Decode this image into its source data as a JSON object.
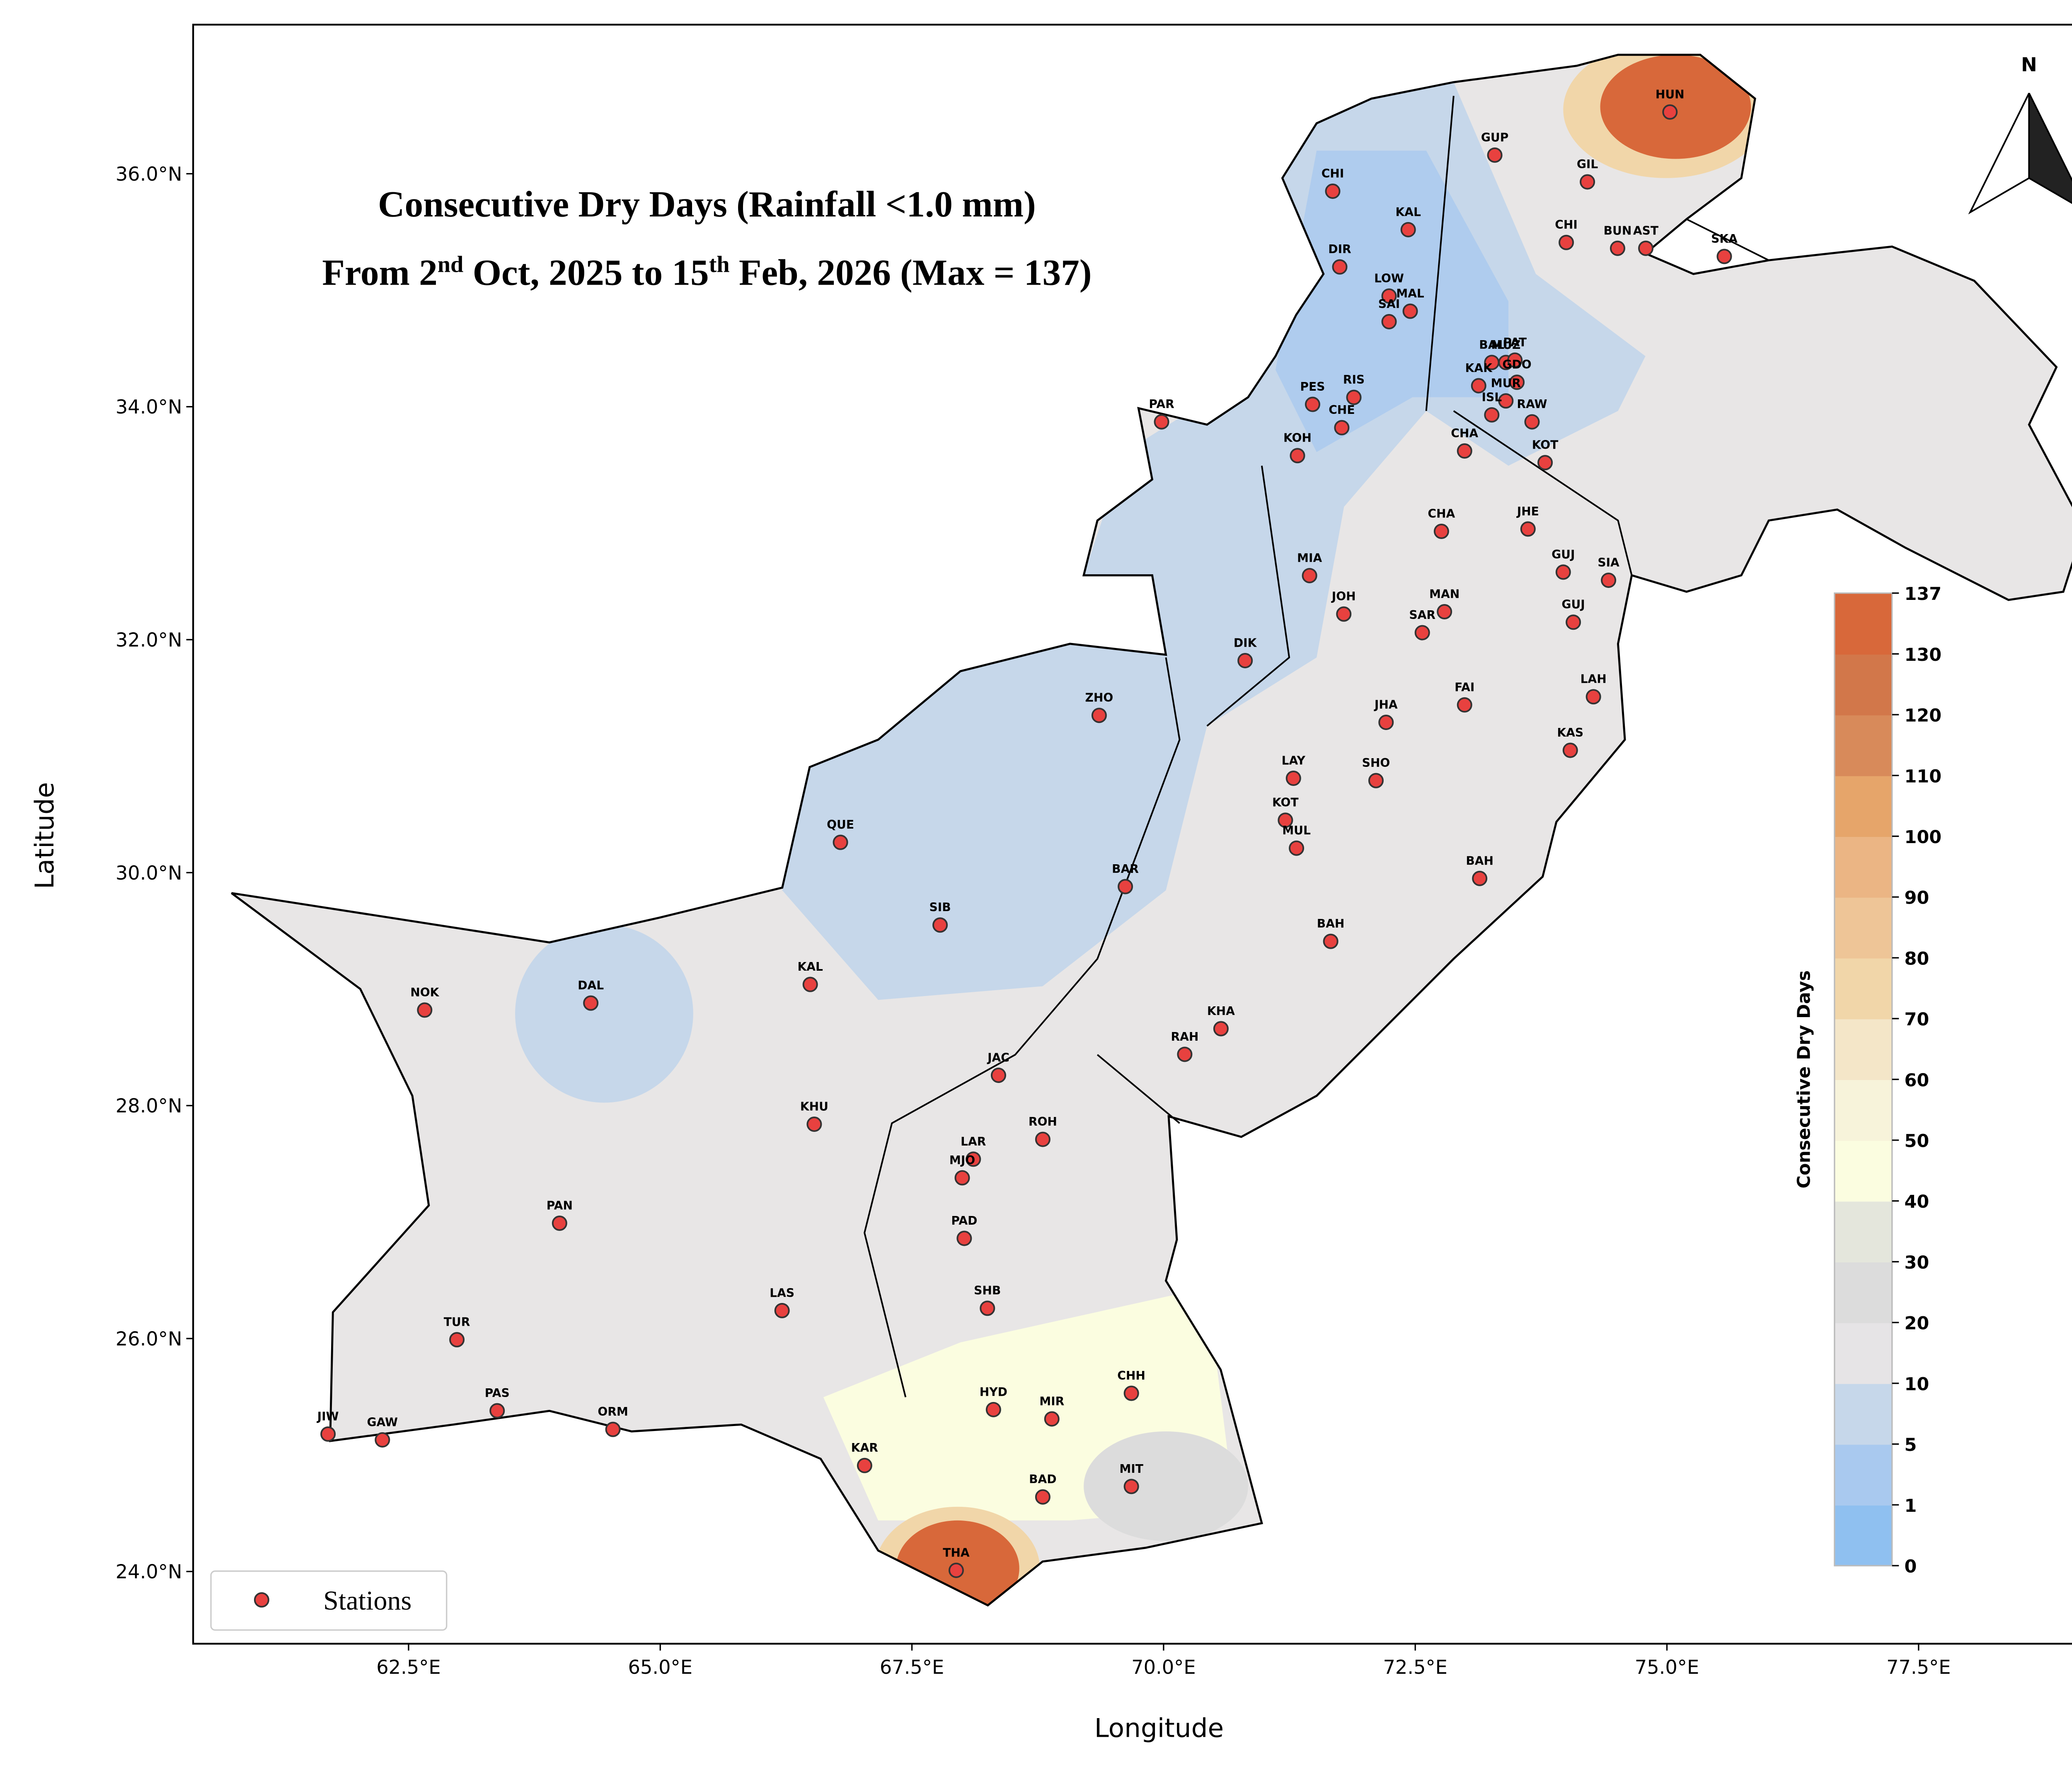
{
  "chart_data": {
    "type": "station-map",
    "title": "Consecutive Dry Days (Rainfall <1.0 mm)",
    "subtitle_parts": [
      {
        "text": "From 2"
      },
      {
        "text": "nd",
        "sup": true
      },
      {
        "text": " Oct, 2025 to 15"
      },
      {
        "text": "th",
        "sup": true
      },
      {
        "text": " Feb, 2026 (Max = 137)"
      }
    ],
    "x_label": "Longitude",
    "y_label": "Latitude",
    "xlim": [
      60.36,
      79.55
    ],
    "ylim": [
      23.38,
      37.28
    ],
    "xticks": [
      {
        "value": 62.5,
        "label": "62.5°E"
      },
      {
        "value": 65,
        "label": "65.0°E"
      },
      {
        "value": 67.5,
        "label": "67.5°E"
      },
      {
        "value": 70,
        "label": "70.0°E"
      },
      {
        "value": 72.5,
        "label": "72.5°E"
      },
      {
        "value": 75,
        "label": "75.0°E"
      },
      {
        "value": 77.5,
        "label": "77.5°E"
      }
    ],
    "yticks": [
      {
        "value": 24,
        "label": "24.0°N"
      },
      {
        "value": 26,
        "label": "26.0°N"
      },
      {
        "value": 28,
        "label": "28.0°N"
      },
      {
        "value": 30,
        "label": "30.0°N"
      },
      {
        "value": 32,
        "label": "32.0°N"
      },
      {
        "value": 34,
        "label": "34.0°N"
      },
      {
        "value": 36,
        "label": "36.0°N"
      }
    ],
    "north_label": "N",
    "legend": {
      "label": "Stations",
      "corner": "lower left"
    },
    "station_color": "#e8413f",
    "colorbar": {
      "label": "Consecutive Dry Days",
      "levels": [
        0,
        1,
        5,
        10,
        20,
        30,
        40,
        50,
        60,
        70,
        80,
        90,
        100,
        110,
        120,
        130,
        137
      ],
      "colors": [
        "#8fc0f0",
        "#a9c9ef",
        "#c6d7ea",
        "#e6e4e6",
        "#dcdcdc",
        "#e4e6dc",
        "#fbfde0",
        "#f7f3da",
        "#f4e6c8",
        "#f1d6a9",
        "#eec597",
        "#ebb584",
        "#e6a56a",
        "#d88a5a",
        "#d2774a",
        "#d8683a"
      ]
    },
    "stations": [
      {
        "name": "GUP",
        "lon": 73.29,
        "lat": 36.16
      },
      {
        "name": "HUN",
        "lon": 75.03,
        "lat": 36.53
      },
      {
        "name": "GIL",
        "lon": 74.21,
        "lat": 35.93
      },
      {
        "name": "CHI",
        "lon": 71.68,
        "lat": 35.85
      },
      {
        "name": "KAL",
        "lon": 72.43,
        "lat": 35.52
      },
      {
        "name": "CHI",
        "lon": 74.0,
        "lat": 35.41
      },
      {
        "name": "BUN",
        "lon": 74.51,
        "lat": 35.36
      },
      {
        "name": "AST",
        "lon": 74.79,
        "lat": 35.36
      },
      {
        "name": "SKA",
        "lon": 75.57,
        "lat": 35.29
      },
      {
        "name": "DIR",
        "lon": 71.75,
        "lat": 35.2
      },
      {
        "name": "LOW",
        "lon": 72.24,
        "lat": 34.95
      },
      {
        "name": "SAI",
        "lon": 72.24,
        "lat": 34.73
      },
      {
        "name": "MAL",
        "lon": 72.45,
        "lat": 34.82
      },
      {
        "name": "BAL",
        "lon": 73.26,
        "lat": 34.38
      },
      {
        "name": "MUZ",
        "lon": 73.4,
        "lat": 34.38
      },
      {
        "name": "PAT",
        "lon": 73.49,
        "lat": 34.4
      },
      {
        "name": "KAK",
        "lon": 73.13,
        "lat": 34.18
      },
      {
        "name": "GDO",
        "lon": 73.51,
        "lat": 34.21
      },
      {
        "name": "MUR",
        "lon": 73.4,
        "lat": 34.05
      },
      {
        "name": "RAW",
        "lon": 73.66,
        "lat": 33.87
      },
      {
        "name": "ISL",
        "lon": 73.26,
        "lat": 33.93
      },
      {
        "name": "CHA",
        "lon": 72.99,
        "lat": 33.62
      },
      {
        "name": "KOT",
        "lon": 73.79,
        "lat": 33.52
      },
      {
        "name": "PES",
        "lon": 71.48,
        "lat": 34.02
      },
      {
        "name": "RIS",
        "lon": 71.89,
        "lat": 34.08
      },
      {
        "name": "CHE",
        "lon": 71.77,
        "lat": 33.82
      },
      {
        "name": "KOH",
        "lon": 71.33,
        "lat": 33.58
      },
      {
        "name": "PAR",
        "lon": 69.98,
        "lat": 33.87
      },
      {
        "name": "CHA",
        "lon": 72.76,
        "lat": 32.93
      },
      {
        "name": "JHE",
        "lon": 73.62,
        "lat": 32.95
      },
      {
        "name": "GUJ",
        "lon": 73.97,
        "lat": 32.58
      },
      {
        "name": "SIA",
        "lon": 74.42,
        "lat": 32.51
      },
      {
        "name": "MIA",
        "lon": 71.45,
        "lat": 32.55
      },
      {
        "name": "JOH",
        "lon": 71.79,
        "lat": 32.22
      },
      {
        "name": "MAN",
        "lon": 72.79,
        "lat": 32.24
      },
      {
        "name": "SAR",
        "lon": 72.57,
        "lat": 32.06
      },
      {
        "name": "GUJ",
        "lon": 74.07,
        "lat": 32.15
      },
      {
        "name": "DIK",
        "lon": 70.81,
        "lat": 31.82
      },
      {
        "name": "FAI",
        "lon": 72.99,
        "lat": 31.44
      },
      {
        "name": "LAH",
        "lon": 74.27,
        "lat": 31.51
      },
      {
        "name": "KAS",
        "lon": 74.04,
        "lat": 31.05
      },
      {
        "name": "JHA",
        "lon": 72.21,
        "lat": 31.29
      },
      {
        "name": "ZHO",
        "lon": 69.36,
        "lat": 31.35
      },
      {
        "name": "LAY",
        "lon": 71.29,
        "lat": 30.81
      },
      {
        "name": "SHO",
        "lon": 72.11,
        "lat": 30.79
      },
      {
        "name": "KOT",
        "lon": 71.21,
        "lat": 30.45
      },
      {
        "name": "MUL",
        "lon": 71.32,
        "lat": 30.21
      },
      {
        "name": "QUE",
        "lon": 66.79,
        "lat": 30.26
      },
      {
        "name": "BAR",
        "lon": 69.62,
        "lat": 29.88
      },
      {
        "name": "BAH",
        "lon": 73.14,
        "lat": 29.95
      },
      {
        "name": "SIB",
        "lon": 67.78,
        "lat": 29.55
      },
      {
        "name": "BAH",
        "lon": 71.66,
        "lat": 29.41
      },
      {
        "name": "NOK",
        "lon": 62.66,
        "lat": 28.82
      },
      {
        "name": "DAL",
        "lon": 64.31,
        "lat": 28.88
      },
      {
        "name": "KAL",
        "lon": 66.49,
        "lat": 29.04
      },
      {
        "name": "KHA",
        "lon": 70.57,
        "lat": 28.66
      },
      {
        "name": "RAH",
        "lon": 70.21,
        "lat": 28.44
      },
      {
        "name": "JAC",
        "lon": 68.36,
        "lat": 28.26
      },
      {
        "name": "KHU",
        "lon": 66.53,
        "lat": 27.84
      },
      {
        "name": "LAR",
        "lon": 68.11,
        "lat": 27.54
      },
      {
        "name": "ROH",
        "lon": 68.8,
        "lat": 27.71
      },
      {
        "name": "MJO",
        "lon": 68.0,
        "lat": 27.38
      },
      {
        "name": "PAD",
        "lon": 68.02,
        "lat": 26.86
      },
      {
        "name": "PAN",
        "lon": 64.0,
        "lat": 26.99
      },
      {
        "name": "SHB",
        "lon": 68.25,
        "lat": 26.26
      },
      {
        "name": "LAS",
        "lon": 66.21,
        "lat": 26.24
      },
      {
        "name": "TUR",
        "lon": 62.98,
        "lat": 25.99
      },
      {
        "name": "CHH",
        "lon": 69.68,
        "lat": 25.53
      },
      {
        "name": "PAS",
        "lon": 63.38,
        "lat": 25.38
      },
      {
        "name": "HYD",
        "lon": 68.31,
        "lat": 25.39
      },
      {
        "name": "MIR",
        "lon": 68.89,
        "lat": 25.31
      },
      {
        "name": "ORM",
        "lon": 64.53,
        "lat": 25.22
      },
      {
        "name": "JIW",
        "lon": 61.7,
        "lat": 25.18
      },
      {
        "name": "GAW",
        "lon": 62.24,
        "lat": 25.13
      },
      {
        "name": "KAR",
        "lon": 67.03,
        "lat": 24.91
      },
      {
        "name": "BAD",
        "lon": 68.8,
        "lat": 24.64
      },
      {
        "name": "MIT",
        "lon": 69.68,
        "lat": 24.73
      },
      {
        "name": "THA",
        "lon": 67.94,
        "lat": 24.01
      }
    ]
  }
}
